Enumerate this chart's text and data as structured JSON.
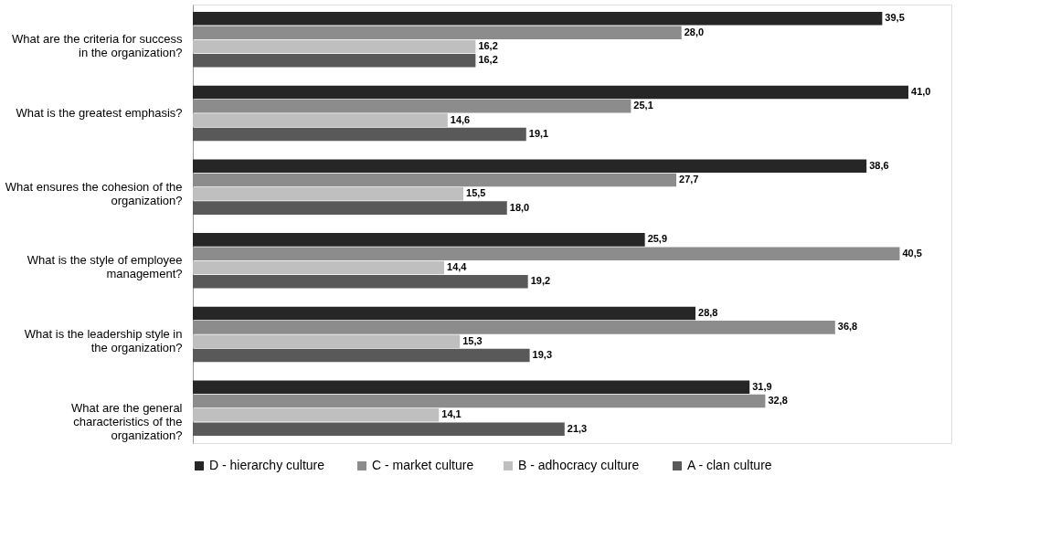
{
  "chart_data": {
    "type": "bar",
    "orientation": "horizontal",
    "legend": "bottom",
    "categories": [
      "What are the criteria for success in the organization?",
      "What is the greatest emphasis?",
      "What ensures the cohesion of the organization?",
      "What is the style of employee management?",
      "What is the leadership style in the organization?",
      "What are the general characteristics of the organization?"
    ],
    "series": [
      {
        "name": "D -  hierarchy culture",
        "color": "#262626",
        "values": [
          39.5,
          41.0,
          38.6,
          25.9,
          28.8,
          31.9
        ],
        "value_labels": [
          "39,5",
          "41,0",
          "38,6",
          "25,9",
          "28,8",
          "31,9"
        ]
      },
      {
        "name": "C - market culture",
        "color": "#8c8c8c",
        "values": [
          28.0,
          25.1,
          27.7,
          40.5,
          36.8,
          32.8
        ],
        "value_labels": [
          "28,0",
          "25,1",
          "27,7",
          "40,5",
          "36,8",
          "32,8"
        ]
      },
      {
        "name": "B -  adhocracy culture",
        "color": "#bfbfbf",
        "values": [
          16.2,
          14.6,
          15.5,
          14.4,
          15.3,
          14.1
        ],
        "value_labels": [
          "16,2",
          "14,6",
          "15,5",
          "14,4",
          "15,3",
          "14,1"
        ]
      },
      {
        "name": "A - clan culture",
        "color": "#595959",
        "values": [
          16.2,
          19.1,
          18.0,
          19.2,
          19.3,
          21.3
        ],
        "value_labels": [
          "16,2",
          "19,1",
          "18,0",
          "19,2",
          "19,3",
          "21,3"
        ]
      }
    ]
  }
}
